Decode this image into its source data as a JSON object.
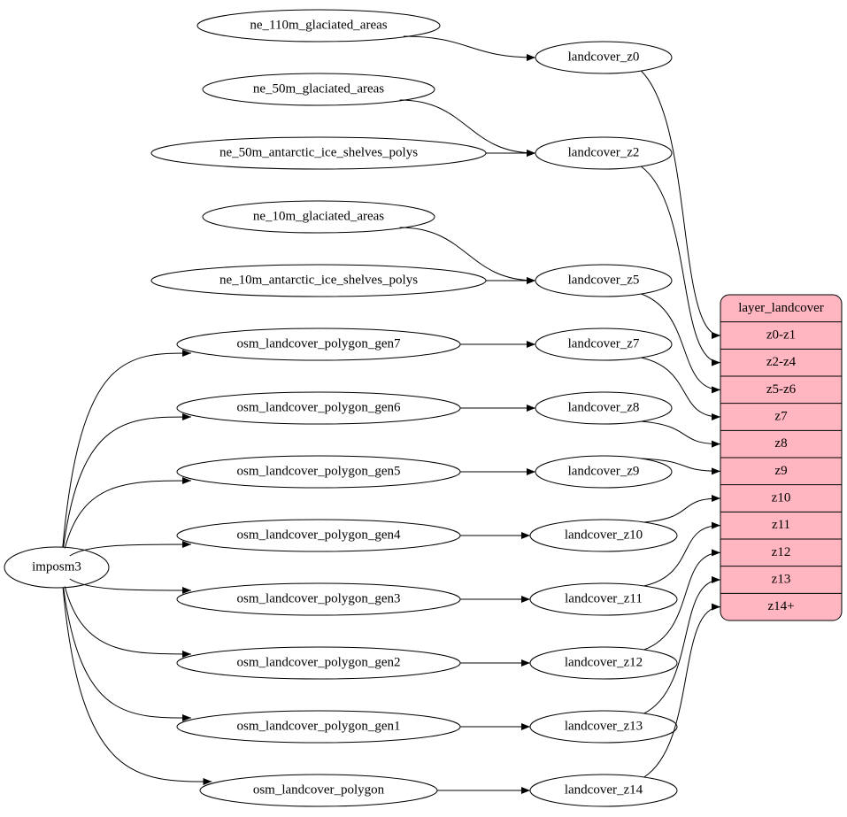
{
  "nodes": [
    {
      "label": "ne_110m_glaciated_areas"
    },
    {
      "label": "ne_50m_glaciated_areas"
    },
    {
      "label": "ne_50m_antarctic_ice_shelves_polys"
    },
    {
      "label": "ne_10m_glaciated_areas"
    },
    {
      "label": "ne_10m_antarctic_ice_shelves_polys"
    },
    {
      "label": "osm_landcover_polygon_gen7"
    },
    {
      "label": "osm_landcover_polygon_gen6"
    },
    {
      "label": "osm_landcover_polygon_gen5"
    },
    {
      "label": "osm_landcover_polygon_gen4"
    },
    {
      "label": "osm_landcover_polygon_gen3"
    },
    {
      "label": "osm_landcover_polygon_gen2"
    },
    {
      "label": "osm_landcover_polygon_gen1"
    },
    {
      "label": "osm_landcover_polygon"
    },
    {
      "label": "imposm3"
    },
    {
      "label": "landcover_z0"
    },
    {
      "label": "landcover_z2"
    },
    {
      "label": "landcover_z5"
    },
    {
      "label": "landcover_z7"
    },
    {
      "label": "landcover_z8"
    },
    {
      "label": "landcover_z9"
    },
    {
      "label": "landcover_z10"
    },
    {
      "label": "landcover_z11"
    },
    {
      "label": "landcover_z12"
    },
    {
      "label": "landcover_z13"
    },
    {
      "label": "landcover_z14"
    }
  ],
  "record": {
    "title": "layer_landcover",
    "fields": [
      "z0-z1",
      "z2-z4",
      "z5-z6",
      "z7",
      "z8",
      "z9",
      "z10",
      "z11",
      "z12",
      "z13",
      "z14+"
    ]
  }
}
